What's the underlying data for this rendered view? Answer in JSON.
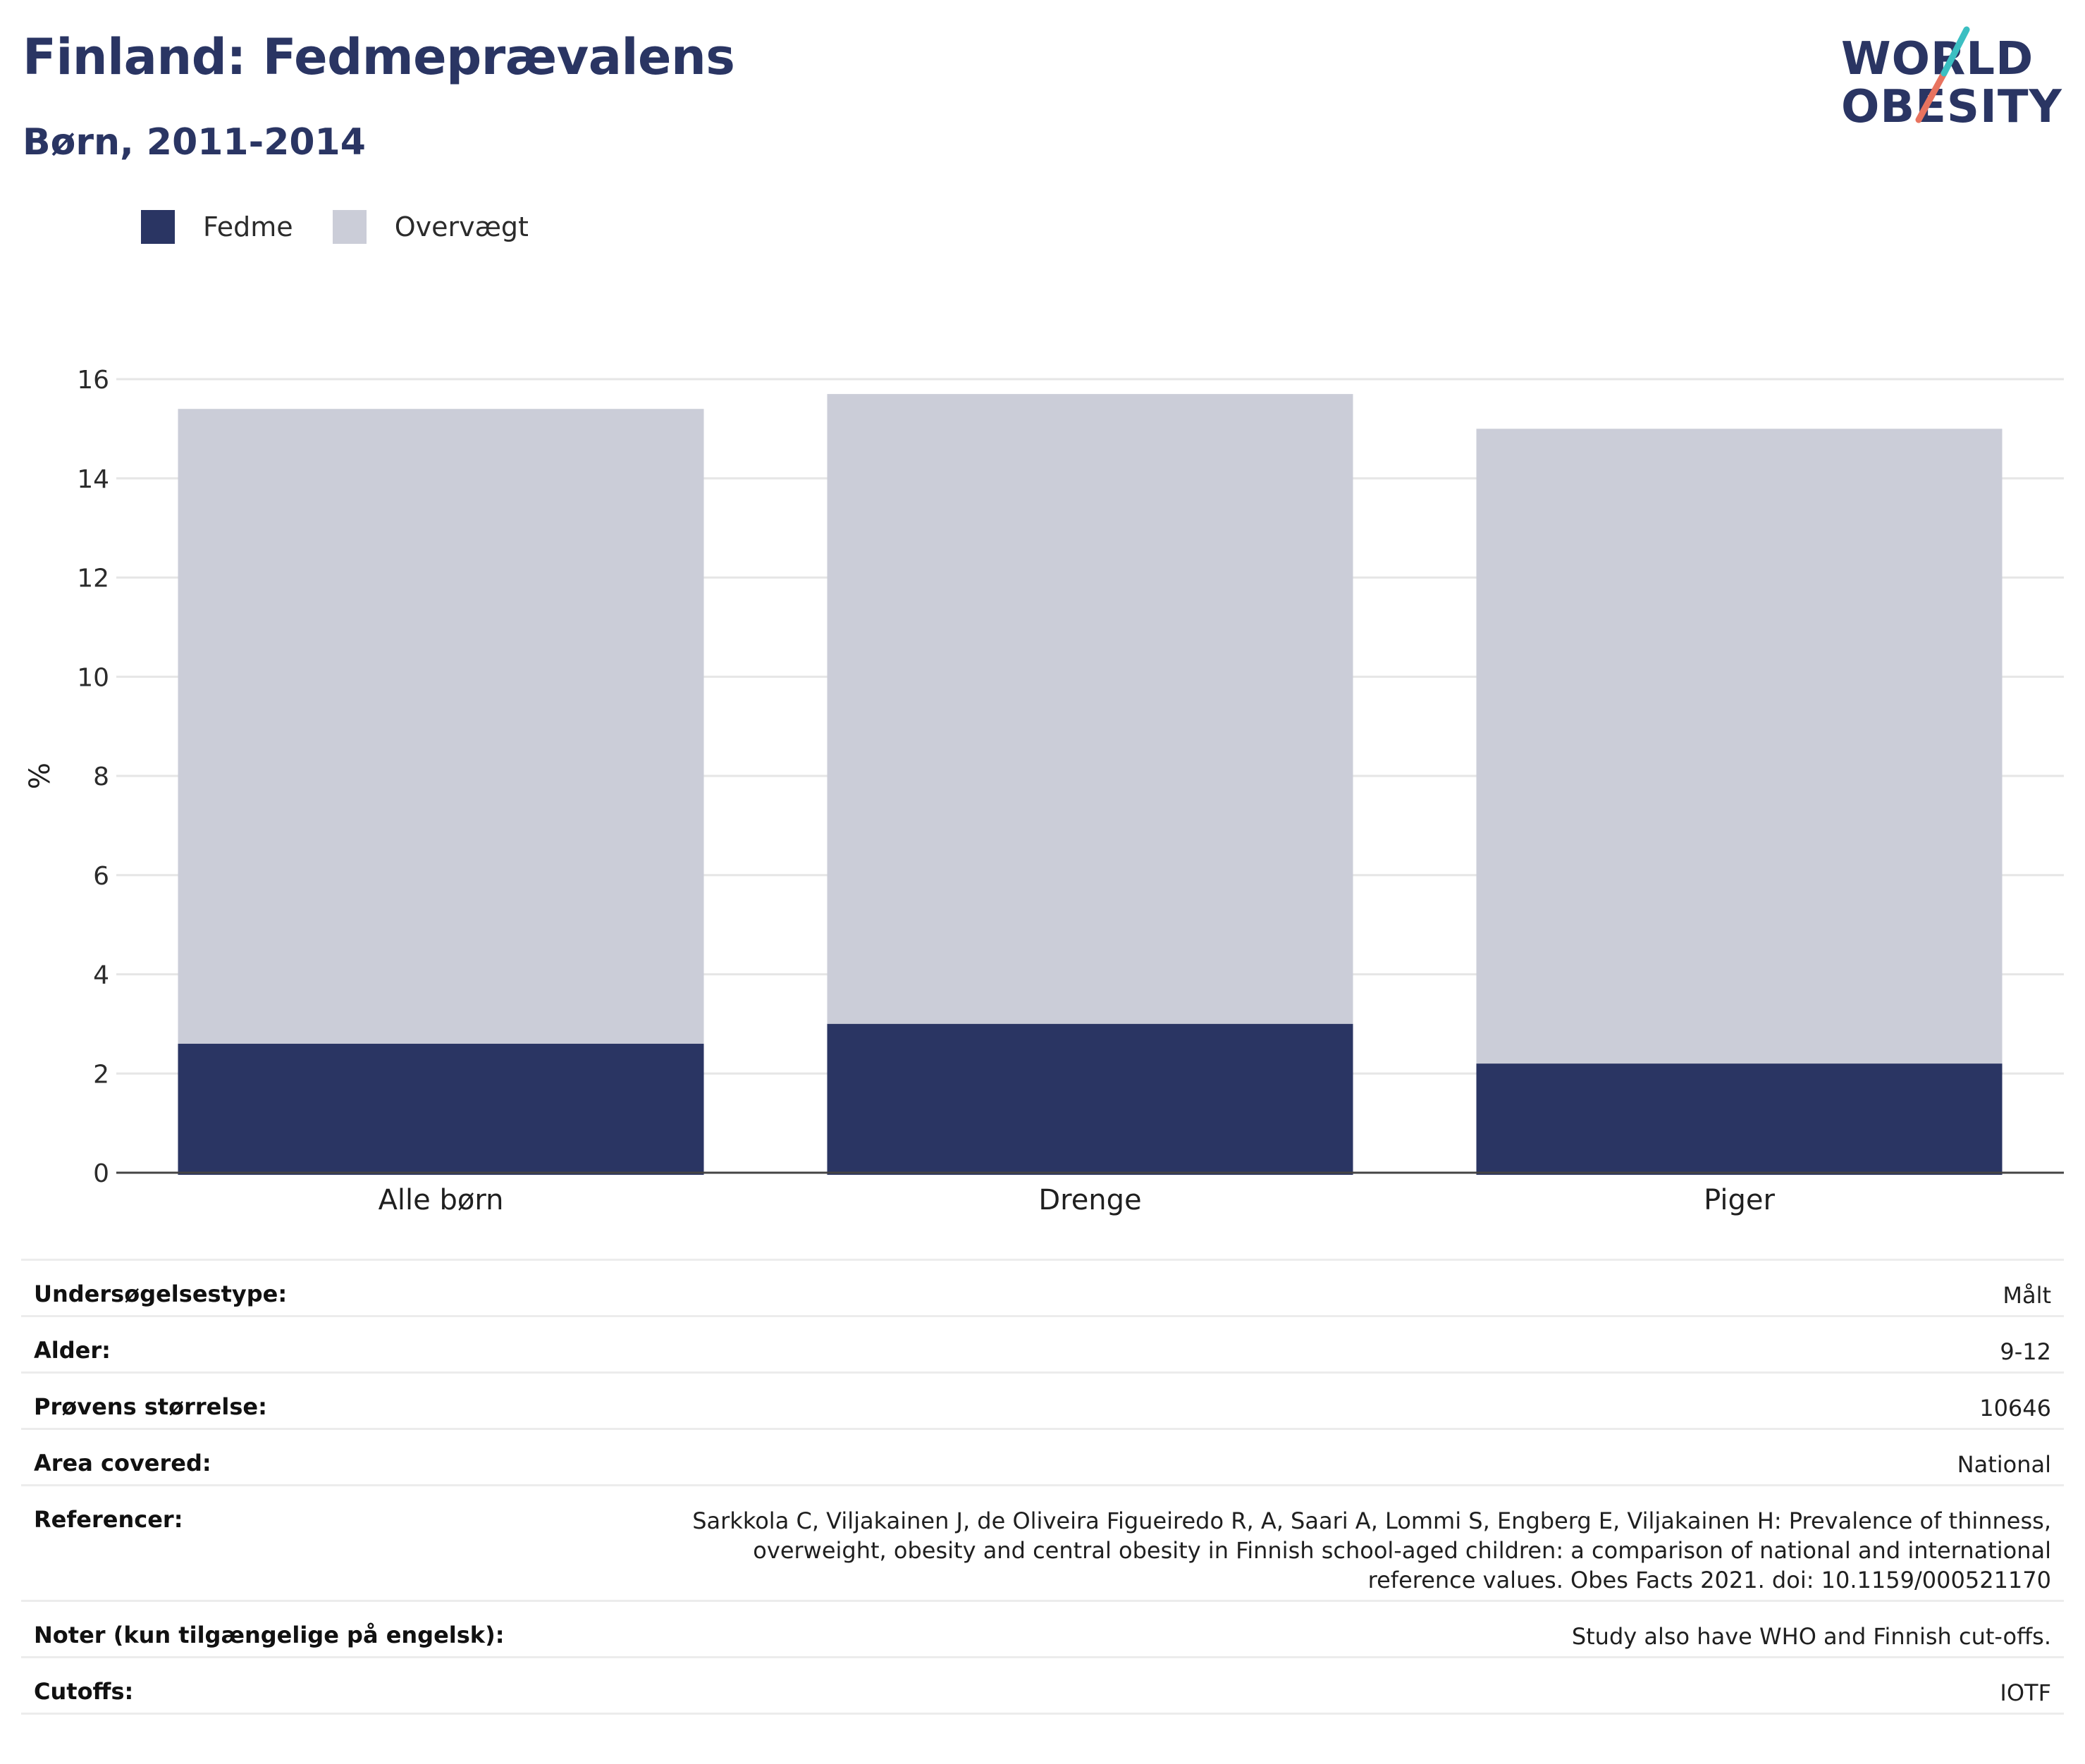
{
  "header": {
    "title": "Finland: Fedmeprævalens",
    "subtitle": "Børn, 2011-2014"
  },
  "logo": {
    "line1": "WORLD",
    "line2": "OBESITY"
  },
  "colors": {
    "fedme": "#2a3563",
    "overvaegt": "#cbcdd8",
    "title": "#2a3563",
    "logo_teal": "#3bbfc2",
    "logo_coral": "#e8735f"
  },
  "legend": [
    {
      "label": "Fedme",
      "color": "#2a3563"
    },
    {
      "label": "Overvægt",
      "color": "#cbcdd8"
    }
  ],
  "chart_data": {
    "type": "bar",
    "stacking": "overlay",
    "categories": [
      "Alle børn",
      "Drenge",
      "Piger"
    ],
    "series": [
      {
        "name": "Overvægt",
        "values": [
          15.4,
          15.7,
          15.0
        ]
      },
      {
        "name": "Fedme",
        "values": [
          2.6,
          3.0,
          2.2
        ]
      }
    ],
    "ylabel": "%",
    "ylim": [
      0,
      16
    ],
    "yticks": [
      0,
      2,
      4,
      6,
      8,
      10,
      12,
      14,
      16
    ],
    "grid": true,
    "legend_position": "top-left"
  },
  "info": {
    "rows": [
      {
        "label": "Undersøgelsestype:",
        "value": "Målt"
      },
      {
        "label": "Alder:",
        "value": "9-12"
      },
      {
        "label": "Prøvens størrelse:",
        "value": "10646"
      },
      {
        "label": "Area covered:",
        "value": "National"
      },
      {
        "label": "Referencer:",
        "value": "Sarkkola C, Viljakainen J, de Oliveira Figueiredo R, A, Saari A, Lommi S, Engberg E, Viljakainen H: Prevalence of thinness, overweight, obesity and central obesity in Finnish school-aged children: a comparison of national and international reference values. Obes Facts 2021. doi: 10.1159/000521170"
      },
      {
        "label": "Noter (kun tilgængelige på engelsk):",
        "value": "Study also have WHO and Finnish cut-offs."
      },
      {
        "label": "Cutoffs:",
        "value": "IOTF"
      }
    ]
  }
}
